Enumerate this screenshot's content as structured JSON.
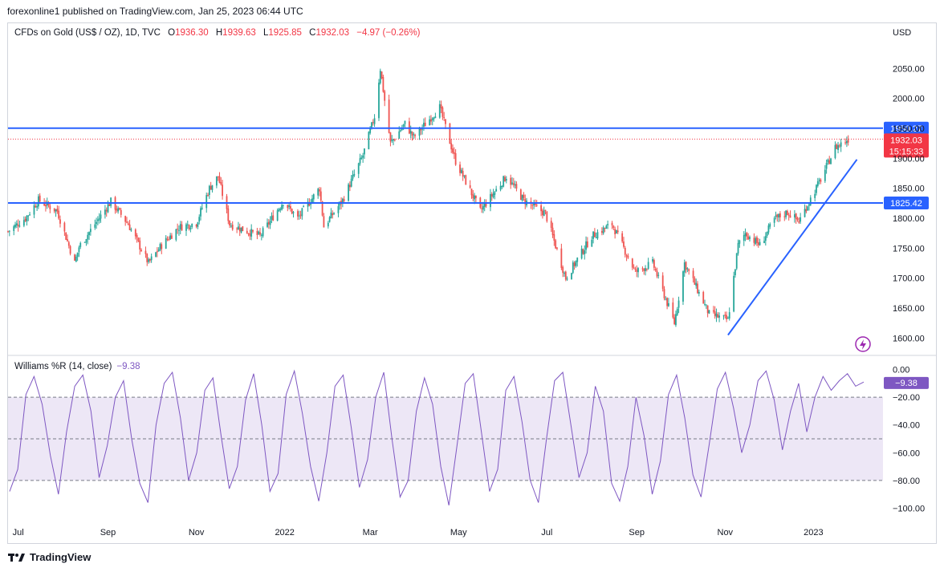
{
  "header": {
    "published": "forexonline1 published on TradingView.com, Jan 25, 2023 06:44 UTC"
  },
  "legend": {
    "symbol": "CFDs on Gold (US$ / OZ), 1D, TVC",
    "open_label": "O",
    "open": "1936.30",
    "high_label": "H",
    "high": "1939.63",
    "low_label": "L",
    "low": "1925.85",
    "close_label": "C",
    "close": "1932.03",
    "change": "−4.97 (−0.26%)"
  },
  "currency": "USD",
  "indicator": {
    "label": "Williams %R (14, close)",
    "value": "−9.38"
  },
  "footer": {
    "brand": "TradingView"
  },
  "colors": {
    "up": "#26a69a",
    "down": "#ef5350",
    "line": "#2962ff",
    "wr": "#7e57c2",
    "wr_band": "#ede7f6",
    "price_tag": "#f23645",
    "level_tag": "#2962ff"
  },
  "chart_data": [
    {
      "type": "candlestick",
      "title": "CFDs on Gold (US$ / OZ), 1D, TVC",
      "x_tick_labels": [
        "Jul",
        "Sep",
        "Nov",
        "2022",
        "Mar",
        "May",
        "Jul",
        "Sep",
        "Nov",
        "2023"
      ],
      "x_tick_dates": [
        "2021-07-01",
        "2021-09-01",
        "2021-11-01",
        "2022-01-01",
        "2022-03-01",
        "2022-05-01",
        "2022-07-01",
        "2022-09-01",
        "2022-11-01",
        "2023-01-01"
      ],
      "x_range": [
        "2021-06-24",
        "2023-02-18"
      ],
      "ylim": [
        1575,
        2100
      ],
      "y_ticks": [
        1600,
        1650,
        1700,
        1750,
        1800,
        1850,
        1900,
        1950,
        2000,
        2050
      ],
      "y_tick_labels": [
        "1600.00",
        "1650.00",
        "1700.00",
        "1750.00",
        "1800.00",
        "1850.00",
        "1900.00",
        "1950.00",
        "2000.00",
        "2050.00"
      ],
      "price_path": [
        [
          "2021-06-24",
          1778
        ],
        [
          "2021-07-06",
          1800
        ],
        [
          "2021-07-15",
          1830
        ],
        [
          "2021-07-28",
          1812
        ],
        [
          "2021-08-09",
          1725
        ],
        [
          "2021-08-12",
          1752
        ],
        [
          "2021-08-20",
          1780
        ],
        [
          "2021-09-03",
          1828
        ],
        [
          "2021-09-15",
          1790
        ],
        [
          "2021-09-29",
          1725
        ],
        [
          "2021-10-08",
          1755
        ],
        [
          "2021-10-20",
          1785
        ],
        [
          "2021-11-01",
          1792
        ],
        [
          "2021-11-10",
          1850
        ],
        [
          "2021-11-16",
          1870
        ],
        [
          "2021-11-24",
          1790
        ],
        [
          "2021-12-15",
          1770
        ],
        [
          "2021-12-31",
          1828
        ],
        [
          "2022-01-10",
          1800
        ],
        [
          "2022-01-25",
          1850
        ],
        [
          "2022-01-28",
          1786
        ],
        [
          "2022-02-10",
          1830
        ],
        [
          "2022-02-24",
          1905
        ],
        [
          "2022-03-04",
          1970
        ],
        [
          "2022-03-08",
          2050
        ],
        [
          "2022-03-15",
          1925
        ],
        [
          "2022-03-25",
          1958
        ],
        [
          "2022-03-31",
          1935
        ],
        [
          "2022-04-18",
          1985
        ],
        [
          "2022-04-29",
          1895
        ],
        [
          "2022-05-16",
          1812
        ],
        [
          "2022-06-03",
          1870
        ],
        [
          "2022-06-15",
          1830
        ],
        [
          "2022-06-30",
          1808
        ],
        [
          "2022-07-14",
          1700
        ],
        [
          "2022-08-01",
          1770
        ],
        [
          "2022-08-15",
          1790
        ],
        [
          "2022-08-31",
          1710
        ],
        [
          "2022-09-12",
          1725
        ],
        [
          "2022-09-27",
          1625
        ],
        [
          "2022-10-04",
          1725
        ],
        [
          "2022-10-21",
          1640
        ],
        [
          "2022-11-03",
          1630
        ],
        [
          "2022-11-10",
          1755
        ],
        [
          "2022-11-15",
          1775
        ],
        [
          "2022-11-25",
          1755
        ],
        [
          "2022-12-05",
          1798
        ],
        [
          "2022-12-14",
          1810
        ],
        [
          "2022-12-22",
          1795
        ],
        [
          "2023-01-06",
          1865
        ],
        [
          "2023-01-16",
          1918
        ],
        [
          "2023-01-25",
          1932
        ]
      ],
      "horizontal_levels": [
        1950.27,
        1825.42
      ],
      "level_labels": [
        "1950.27",
        "1825.42"
      ],
      "trendline": {
        "from": [
          "2022-11-03",
          1605
        ],
        "to": [
          "2023-01-31",
          1898
        ]
      },
      "last_price": {
        "value": "1932.03",
        "countdown": "15:15:33"
      }
    },
    {
      "type": "line",
      "title": "Williams %R (14, close)",
      "ylim": [
        -105,
        5
      ],
      "y_ticks": [
        0,
        -20,
        -40,
        -60,
        -80,
        -100
      ],
      "y_tick_labels": [
        "0.00",
        "−20.00",
        "−40.00",
        "−60.00",
        "−80.00",
        "−100.00"
      ],
      "band": [
        -20,
        -80
      ],
      "series": [
        {
          "values": [
            -88,
            -72,
            -18,
            -5,
            -25,
            -62,
            -90,
            -45,
            -12,
            -4,
            -30,
            -78,
            -55,
            -20,
            -8,
            -50,
            -82,
            -96,
            -40,
            -10,
            -2,
            -35,
            -80,
            -60,
            -15,
            -6,
            -48,
            -86,
            -70,
            -22,
            -3,
            -40,
            -88,
            -75,
            -18,
            -1,
            -32,
            -70,
            -95,
            -60,
            -12,
            -4,
            -42,
            -85,
            -65,
            -20,
            -2,
            -50,
            -92,
            -80,
            -30,
            -6,
            -25,
            -70,
            -98,
            -55,
            -10,
            -3,
            -45,
            -88,
            -72,
            -15,
            -5,
            -38,
            -80,
            -96,
            -50,
            -8,
            -2,
            -40,
            -78,
            -60,
            -12,
            -30,
            -82,
            -95,
            -70,
            -20,
            -48,
            -90,
            -66,
            -18,
            -4,
            -35,
            -76,
            -92,
            -54,
            -14,
            -2,
            -28,
            -60,
            -40,
            -8,
            -1,
            -22,
            -58,
            -30,
            -10,
            -45,
            -20,
            -5,
            -15,
            -8,
            -3,
            -12,
            -9
          ]
        }
      ],
      "last_value": "−9.38"
    }
  ]
}
